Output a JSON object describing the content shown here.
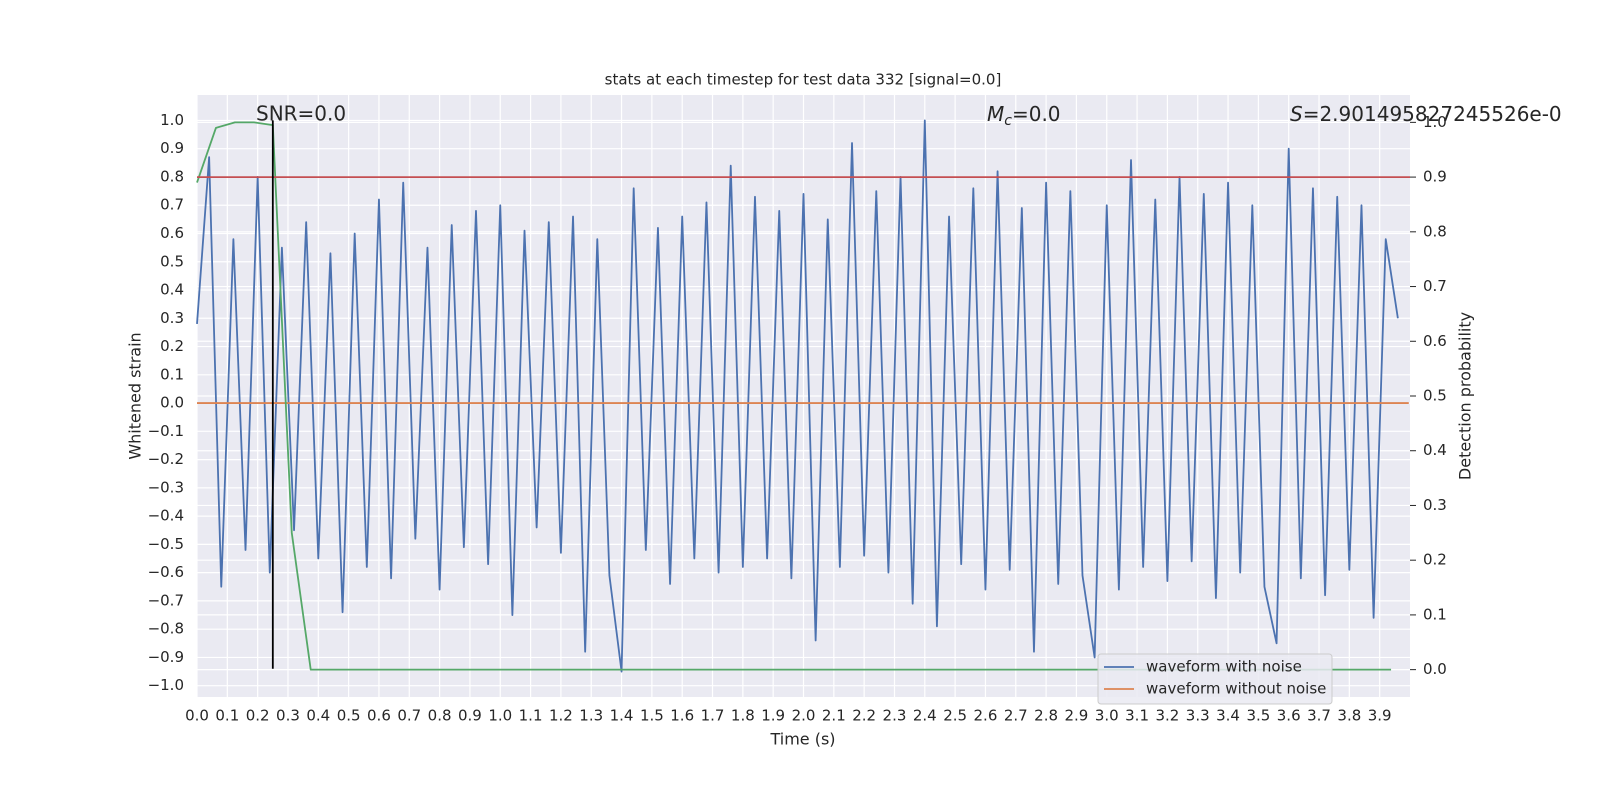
{
  "chart_data": {
    "type": "line",
    "title": "stats at each timestep for test data 332 [signal=0.0]",
    "x_label": "Time (s)",
    "y_label": "Whitened strain",
    "y2_label": "Detection probability",
    "xlim": [
      0,
      4.0
    ],
    "ylim": [
      -1.04,
      1.09
    ],
    "y2lim": [
      -0.05,
      1.05
    ],
    "grid": true,
    "legend": "lower right",
    "xticks": [
      {
        "value": 0,
        "label": "0.0"
      },
      0.1,
      0.2,
      0.3,
      0.4,
      0.5,
      0.6,
      0.7,
      0.8,
      0.9,
      {
        "value": 1,
        "label": "1.0"
      },
      1.1,
      1.2,
      1.3,
      1.4,
      1.5,
      1.6,
      1.7,
      1.8,
      1.9,
      {
        "value": 2,
        "label": "2.0"
      },
      2.1,
      2.2,
      2.3,
      2.4,
      2.5,
      2.6,
      2.7,
      2.8,
      2.9,
      {
        "value": 3,
        "label": "3.0"
      },
      3.1,
      3.2,
      3.3,
      3.4,
      3.5,
      3.6,
      3.7,
      3.8,
      3.9
    ],
    "yticks": [
      {
        "value": -1,
        "label": "−1.0"
      },
      {
        "value": -0.9,
        "label": "−0.9"
      },
      {
        "value": -0.8,
        "label": "−0.8"
      },
      {
        "value": -0.7,
        "label": "−0.7"
      },
      {
        "value": -0.6,
        "label": "−0.6"
      },
      {
        "value": -0.5,
        "label": "−0.5"
      },
      {
        "value": -0.4,
        "label": "−0.4"
      },
      {
        "value": -0.3,
        "label": "−0.3"
      },
      {
        "value": -0.2,
        "label": "−0.2"
      },
      {
        "value": -0.1,
        "label": "−0.1"
      },
      {
        "value": 0,
        "label": "0.0"
      },
      0.1,
      0.2,
      0.3,
      0.4,
      0.5,
      0.6,
      0.7,
      0.8,
      0.9,
      {
        "value": 1,
        "label": "1.0"
      }
    ],
    "y2ticks": [
      {
        "value": 0,
        "label": "0.0"
      },
      0.1,
      0.2,
      0.3,
      0.4,
      0.5,
      0.6,
      0.7,
      0.8,
      0.9,
      {
        "value": 1,
        "label": "1.0"
      }
    ],
    "series": [
      {
        "name": "waveform with noise",
        "color": "#4c72b0",
        "x": [
          0.0,
          0.04,
          0.08,
          0.12,
          0.16,
          0.2,
          0.24,
          0.28,
          0.32,
          0.36,
          0.4,
          0.44,
          0.48,
          0.52,
          0.56,
          0.6,
          0.64,
          0.68,
          0.72,
          0.76,
          0.8,
          0.84,
          0.88,
          0.92,
          0.96,
          1.0,
          1.04,
          1.08,
          1.12,
          1.16,
          1.2,
          1.24,
          1.28,
          1.32,
          1.36,
          1.4,
          1.44,
          1.48,
          1.52,
          1.56,
          1.6,
          1.64,
          1.68,
          1.72,
          1.76,
          1.8,
          1.84,
          1.88,
          1.92,
          1.96,
          2.0,
          2.04,
          2.08,
          2.12,
          2.16,
          2.2,
          2.24,
          2.28,
          2.32,
          2.36,
          2.4,
          2.44,
          2.48,
          2.52,
          2.56,
          2.6,
          2.64,
          2.68,
          2.72,
          2.76,
          2.8,
          2.84,
          2.88,
          2.92,
          2.96,
          3.0,
          3.04,
          3.08,
          3.12,
          3.16,
          3.2,
          3.24,
          3.28,
          3.32,
          3.36,
          3.4,
          3.44,
          3.48,
          3.52,
          3.56,
          3.6,
          3.64,
          3.68,
          3.72,
          3.76,
          3.8,
          3.84,
          3.88,
          3.92,
          3.96
        ],
        "values": [
          0.28,
          0.87,
          -0.65,
          0.58,
          -0.52,
          0.8,
          -0.6,
          0.55,
          -0.45,
          0.64,
          -0.55,
          0.53,
          -0.74,
          0.6,
          -0.58,
          0.72,
          -0.62,
          0.78,
          -0.48,
          0.55,
          -0.66,
          0.63,
          -0.51,
          0.68,
          -0.57,
          0.7,
          -0.75,
          0.61,
          -0.44,
          0.64,
          -0.53,
          0.66,
          -0.88,
          0.58,
          -0.61,
          -0.95,
          0.76,
          -0.52,
          0.62,
          -0.64,
          0.66,
          -0.55,
          0.71,
          -0.6,
          0.84,
          -0.58,
          0.73,
          -0.55,
          0.68,
          -0.62,
          0.74,
          -0.84,
          0.65,
          -0.58,
          0.92,
          -0.54,
          0.75,
          -0.6,
          0.8,
          -0.71,
          1.0,
          -0.79,
          0.66,
          -0.57,
          0.76,
          -0.66,
          0.82,
          -0.59,
          0.69,
          -0.88,
          0.78,
          -0.64,
          0.75,
          -0.61,
          -0.9,
          0.7,
          -0.66,
          0.86,
          -0.58,
          0.72,
          -0.63,
          0.8,
          -0.56,
          0.74,
          -0.69,
          0.78,
          -0.6,
          0.7,
          -0.65,
          -0.85,
          0.9,
          -0.62,
          0.76,
          -0.68,
          0.73,
          -0.59,
          0.7,
          -0.76,
          0.58,
          0.3
        ]
      },
      {
        "name": "waveform without noise",
        "color": "#dd8452",
        "x": [
          0,
          3.996
        ],
        "values": [
          0,
          0
        ]
      },
      {
        "color": "#55a868",
        "axis": "y2",
        "x": [
          0,
          0.0625,
          0.125,
          0.1875,
          0.25,
          0.3125,
          0.375,
          0.4375,
          0.5,
          0.5625,
          0.625,
          0.6875,
          0.75,
          0.8125,
          0.875,
          0.9375,
          1,
          1.0625,
          1.125,
          1.1875,
          1.25,
          1.3125,
          1.375,
          1.4375,
          1.5,
          1.5625,
          1.625,
          1.6875,
          1.75,
          1.8125,
          1.875,
          1.9375,
          2,
          2.0625,
          2.125,
          2.1875,
          2.25,
          2.3125,
          2.375,
          2.4375,
          2.5,
          2.5625,
          2.625,
          2.6875,
          2.75,
          2.8125,
          2.875,
          2.9375,
          3,
          3.0625,
          3.125,
          3.1875,
          3.25,
          3.3125,
          3.375,
          3.4375,
          3.5,
          3.5625,
          3.625,
          3.6875,
          3.75,
          3.8125,
          3.875,
          3.9375
        ],
        "values": [
          0.89,
          0.99,
          1.0,
          1.0,
          0.995,
          0.25,
          0,
          0,
          0,
          0,
          0,
          0,
          0,
          0,
          0,
          0,
          0,
          0,
          0,
          0,
          0,
          0,
          0,
          0,
          0,
          0,
          0,
          0,
          0,
          0,
          0,
          0,
          0,
          0,
          0,
          0,
          0,
          0,
          0,
          0,
          0,
          0,
          0,
          0,
          0,
          0,
          0,
          0,
          0,
          0,
          0,
          0,
          0,
          0,
          0,
          0,
          0,
          0,
          0,
          0,
          0,
          0,
          0,
          0
        ]
      }
    ],
    "threshold": {
      "value": 0.9,
      "axis": "y2",
      "color": "#c44e52"
    },
    "vline": {
      "x": 0.25,
      "y": [
        -0.94,
        1.0
      ],
      "color": "#000000"
    },
    "annotations": {
      "snr": "SNR=0.0",
      "mc": {
        "symbol": "M",
        "subscript": "c",
        "text": "=0.0"
      },
      "s": {
        "symbol": "S",
        "text": "=2.901495827245526e-0"
      }
    }
  }
}
